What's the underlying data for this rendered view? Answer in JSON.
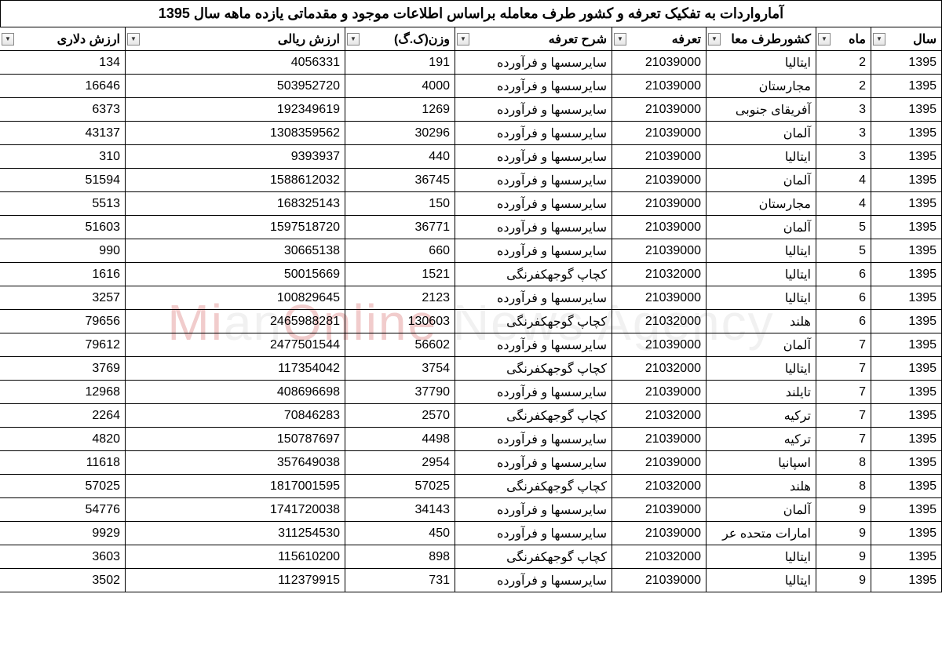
{
  "title": "آمارواردات به تفکیک تعرفه و کشور طرف معامله براساس اطلاعات موجود و مقدماتی یازده ماهه سال 1395",
  "watermark": {
    "part1": "Mi",
    "part2": "an",
    "part3": "Online ",
    "part4": "News Agency"
  },
  "columns": [
    {
      "key": "year",
      "label": "سال",
      "cls": "col-year"
    },
    {
      "key": "month",
      "label": "ماه",
      "cls": "col-month"
    },
    {
      "key": "country",
      "label": "کشورطرف معا",
      "cls": "col-country"
    },
    {
      "key": "tariff",
      "label": "تعرفه",
      "cls": "col-tariff"
    },
    {
      "key": "desc",
      "label": "شرح تعرفه",
      "cls": "col-desc"
    },
    {
      "key": "weight",
      "label": "وزن(ک.گ)",
      "cls": "col-weight"
    },
    {
      "key": "rial",
      "label": "ارزش ریالی",
      "cls": "col-rial"
    },
    {
      "key": "dollar",
      "label": "ارزش دلاری",
      "cls": "col-dollar"
    }
  ],
  "text_columns": [
    "country",
    "desc"
  ],
  "rows": [
    {
      "year": "1395",
      "month": "2",
      "country": "ایتالیا",
      "tariff": "21039000",
      "desc": "سایرسسها و فرآورده",
      "weight": "191",
      "rial": "4056331",
      "dollar": "134"
    },
    {
      "year": "1395",
      "month": "2",
      "country": "مجارستان",
      "tariff": "21039000",
      "desc": "سایرسسها و فرآورده",
      "weight": "4000",
      "rial": "503952720",
      "dollar": "16646"
    },
    {
      "year": "1395",
      "month": "3",
      "country": "آفریقای جنوبی",
      "tariff": "21039000",
      "desc": "سایرسسها و فرآورده",
      "weight": "1269",
      "rial": "192349619",
      "dollar": "6373"
    },
    {
      "year": "1395",
      "month": "3",
      "country": "آلمان",
      "tariff": "21039000",
      "desc": "سایرسسها و فرآورده",
      "weight": "30296",
      "rial": "1308359562",
      "dollar": "43137"
    },
    {
      "year": "1395",
      "month": "3",
      "country": "ایتالیا",
      "tariff": "21039000",
      "desc": "سایرسسها و فرآورده",
      "weight": "440",
      "rial": "9393937",
      "dollar": "310"
    },
    {
      "year": "1395",
      "month": "4",
      "country": "آلمان",
      "tariff": "21039000",
      "desc": "سایرسسها و فرآورده",
      "weight": "36745",
      "rial": "1588612032",
      "dollar": "51594"
    },
    {
      "year": "1395",
      "month": "4",
      "country": "مجارستان",
      "tariff": "21039000",
      "desc": "سایرسسها و فرآورده",
      "weight": "150",
      "rial": "168325143",
      "dollar": "5513"
    },
    {
      "year": "1395",
      "month": "5",
      "country": "آلمان",
      "tariff": "21039000",
      "desc": "سایرسسها و فرآورده",
      "weight": "36771",
      "rial": "1597518720",
      "dollar": "51603"
    },
    {
      "year": "1395",
      "month": "5",
      "country": "ایتالیا",
      "tariff": "21039000",
      "desc": "سایرسسها و فرآورده",
      "weight": "660",
      "rial": "30665138",
      "dollar": "990"
    },
    {
      "year": "1395",
      "month": "6",
      "country": "ایتالیا",
      "tariff": "21032000",
      "desc": "کچاپ گوجهکفرنگی",
      "weight": "1521",
      "rial": "50015669",
      "dollar": "1616"
    },
    {
      "year": "1395",
      "month": "6",
      "country": "ایتالیا",
      "tariff": "21039000",
      "desc": "سایرسسها و فرآورده",
      "weight": "2123",
      "rial": "100829645",
      "dollar": "3257"
    },
    {
      "year": "1395",
      "month": "6",
      "country": "هلند",
      "tariff": "21032000",
      "desc": "کچاپ گوجهکفرنگی",
      "weight": "130603",
      "rial": "2465988281",
      "dollar": "79656"
    },
    {
      "year": "1395",
      "month": "7",
      "country": "آلمان",
      "tariff": "21039000",
      "desc": "سایرسسها و فرآورده",
      "weight": "56602",
      "rial": "2477501544",
      "dollar": "79612"
    },
    {
      "year": "1395",
      "month": "7",
      "country": "ایتالیا",
      "tariff": "21032000",
      "desc": "کچاپ گوجهکفرنگی",
      "weight": "3754",
      "rial": "117354042",
      "dollar": "3769"
    },
    {
      "year": "1395",
      "month": "7",
      "country": "تایلند",
      "tariff": "21039000",
      "desc": "سایرسسها و فرآورده",
      "weight": "37790",
      "rial": "408696698",
      "dollar": "12968"
    },
    {
      "year": "1395",
      "month": "7",
      "country": "ترکیه",
      "tariff": "21032000",
      "desc": "کچاپ گوجهکفرنگی",
      "weight": "2570",
      "rial": "70846283",
      "dollar": "2264"
    },
    {
      "year": "1395",
      "month": "7",
      "country": "ترکیه",
      "tariff": "21039000",
      "desc": "سایرسسها و فرآورده",
      "weight": "4498",
      "rial": "150787697",
      "dollar": "4820"
    },
    {
      "year": "1395",
      "month": "8",
      "country": "اسپانیا",
      "tariff": "21039000",
      "desc": "سایرسسها و فرآورده",
      "weight": "2954",
      "rial": "357649038",
      "dollar": "11618"
    },
    {
      "year": "1395",
      "month": "8",
      "country": "هلند",
      "tariff": "21032000",
      "desc": "کچاپ گوجهکفرنگی",
      "weight": "57025",
      "rial": "1817001595",
      "dollar": "57025"
    },
    {
      "year": "1395",
      "month": "9",
      "country": "آلمان",
      "tariff": "21039000",
      "desc": "سایرسسها و فرآورده",
      "weight": "34143",
      "rial": "1741720038",
      "dollar": "54776"
    },
    {
      "year": "1395",
      "month": "9",
      "country": "امارات متحده عر",
      "tariff": "21039000",
      "desc": "سایرسسها و فرآورده",
      "weight": "450",
      "rial": "311254530",
      "dollar": "9929"
    },
    {
      "year": "1395",
      "month": "9",
      "country": "ایتالیا",
      "tariff": "21032000",
      "desc": "کچاپ گوجهکفرنگی",
      "weight": "898",
      "rial": "115610200",
      "dollar": "3603"
    },
    {
      "year": "1395",
      "month": "9",
      "country": "ایتالیا",
      "tariff": "21039000",
      "desc": "سایرسسها و فرآورده",
      "weight": "731",
      "rial": "112379915",
      "dollar": "3502"
    }
  ]
}
